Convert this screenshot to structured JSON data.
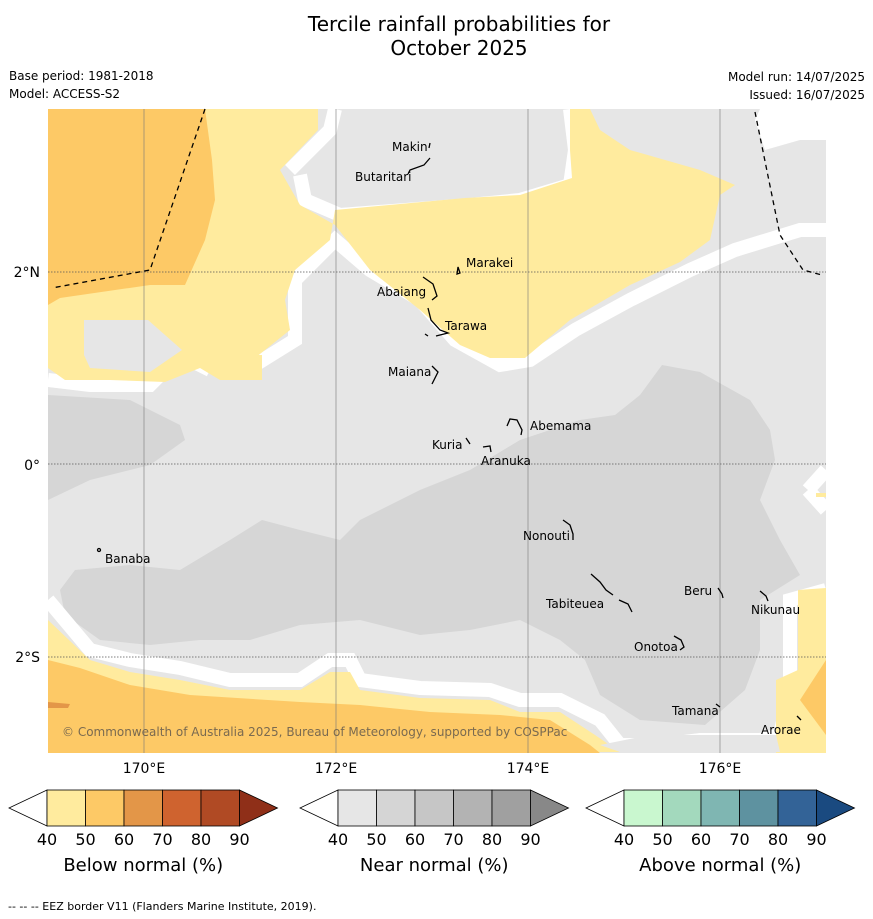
{
  "title_line1": "Tercile rainfall probabilities for",
  "title_line2": "October 2025",
  "base_period": "Base period: 1981-2018",
  "model": "Model: ACCESS-S2",
  "model_run": "Model run: 14/07/2025",
  "issued": "Issued: 16/07/2025",
  "copyright": "© Commonwealth of Australia 2025, Bureau of Meteorology, supported by COSPPac",
  "footnote": "--  --  -- EEZ border V11 (Flanders Marine Institute, 2019).",
  "lat_labels": [
    "2°N",
    "0°",
    "2°S"
  ],
  "lon_labels": [
    "170°E",
    "172°E",
    "174°E",
    "176°E"
  ],
  "places": [
    "Makin",
    "Butaritari",
    "Marakei",
    "Abaiang",
    "Tarawa",
    "Maiana",
    "Abemama",
    "Kuria",
    "Aranuka",
    "Nonouti",
    "Banaba",
    "Beru",
    "Tabiteuea",
    "Nikunau",
    "Onotoa",
    "Tamana",
    "Arorae"
  ],
  "colorbars": [
    {
      "label": "Below normal (%)",
      "ticks": [
        "40",
        "50",
        "60",
        "70",
        "80",
        "90"
      ],
      "colors": [
        "#ffffff",
        "#ffeb9e",
        "#fdc966",
        "#e39648",
        "#cf632f",
        "#b04a24",
        "#8f2f18"
      ]
    },
    {
      "label": "Near normal (%)",
      "ticks": [
        "40",
        "50",
        "60",
        "70",
        "80",
        "90"
      ],
      "colors": [
        "#ffffff",
        "#e6e6e6",
        "#d5d5d5",
        "#c6c6c6",
        "#b3b3b3",
        "#a0a0a0",
        "#888888"
      ]
    },
    {
      "label": "Above normal (%)",
      "ticks": [
        "40",
        "50",
        "60",
        "70",
        "80",
        "90"
      ],
      "colors": [
        "#ffffff",
        "#c9f7cf",
        "#a3d9bd",
        "#7fb6b2",
        "#5e92a0",
        "#336397",
        "#1a4a80"
      ]
    }
  ]
}
